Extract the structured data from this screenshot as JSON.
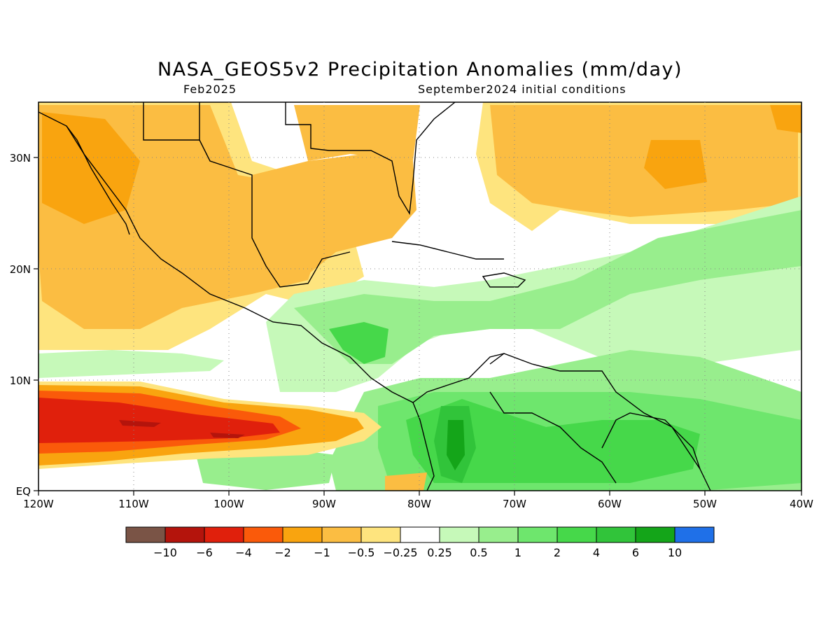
{
  "header": {
    "title": "NASA_GEOS5v2 Precipitation Anomalies (mm/day)",
    "valid_month": "Feb2025",
    "init": "September2024 initial conditions"
  },
  "map": {
    "lat_labels": [
      "30N",
      "20N",
      "10N",
      "EQ"
    ],
    "lon_labels": [
      "120W",
      "110W",
      "100W",
      "90W",
      "80W",
      "70W",
      "60W",
      "50W",
      "40W"
    ],
    "extent": {
      "lon_min": -120,
      "lon_max": -40,
      "lat_min": 0,
      "lat_max": 35
    }
  },
  "legend": {
    "colors": [
      "#7a5446",
      "#b4140c",
      "#e0200c",
      "#fa5a0a",
      "#f9a40f",
      "#fbbd42",
      "#fee47e",
      "#ffffff",
      "#c6f9b9",
      "#98ee8d",
      "#6ee66d",
      "#46d84a",
      "#31c43a",
      "#14a519",
      "#1f70e8"
    ],
    "labels": [
      "−10",
      "−6",
      "−4",
      "−2",
      "−1",
      "−0.5",
      "−0.25",
      "0.25",
      "0.5",
      "1",
      "2",
      "4",
      "6",
      "10"
    ]
  }
}
